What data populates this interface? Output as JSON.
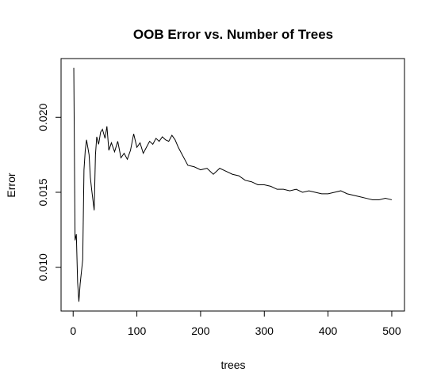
{
  "chart_data": {
    "type": "line",
    "title": "OOB Error vs. Number of Trees",
    "xlabel": "trees",
    "ylabel": "Error",
    "x": [
      1,
      2,
      3,
      5,
      7,
      9,
      11,
      13,
      15,
      17,
      19,
      21,
      23,
      25,
      27,
      29,
      31,
      33,
      35,
      37,
      40,
      43,
      46,
      50,
      53,
      56,
      60,
      65,
      70,
      75,
      80,
      85,
      90,
      95,
      100,
      105,
      110,
      115,
      120,
      125,
      130,
      135,
      140,
      145,
      150,
      155,
      160,
      165,
      170,
      175,
      180,
      190,
      200,
      210,
      220,
      230,
      240,
      250,
      260,
      270,
      280,
      290,
      300,
      310,
      320,
      330,
      340,
      350,
      360,
      370,
      380,
      390,
      400,
      410,
      420,
      430,
      440,
      450,
      460,
      470,
      480,
      490,
      500
    ],
    "series": [
      {
        "name": "OOB",
        "color": "#000000",
        "values": [
          0.0233,
          0.0175,
          0.0118,
          0.0122,
          0.009,
          0.0077,
          0.0089,
          0.0097,
          0.0105,
          0.0165,
          0.0178,
          0.0185,
          0.018,
          0.0175,
          0.016,
          0.0152,
          0.0145,
          0.0138,
          0.0175,
          0.0187,
          0.0182,
          0.019,
          0.0192,
          0.0186,
          0.0194,
          0.0178,
          0.0183,
          0.0177,
          0.0184,
          0.0173,
          0.0176,
          0.0172,
          0.0178,
          0.0189,
          0.018,
          0.0183,
          0.0176,
          0.018,
          0.0184,
          0.0182,
          0.0186,
          0.0184,
          0.0187,
          0.0185,
          0.0184,
          0.0188,
          0.0185,
          0.018,
          0.0176,
          0.0172,
          0.0168,
          0.0167,
          0.0165,
          0.0166,
          0.0162,
          0.0166,
          0.0164,
          0.0162,
          0.0161,
          0.0158,
          0.0157,
          0.0155,
          0.0155,
          0.0154,
          0.0152,
          0.0152,
          0.0151,
          0.0152,
          0.015,
          0.0151,
          0.015,
          0.0149,
          0.0149,
          0.015,
          0.0151,
          0.0149,
          0.0148,
          0.0147,
          0.0146,
          0.0145,
          0.0145,
          0.0146,
          0.0145
        ]
      }
    ],
    "xlim": [
      -18.96,
      519.96
    ],
    "xticks": [
      0,
      100,
      200,
      300,
      400,
      500
    ],
    "ylim": [
      0.00708,
      0.02392
    ],
    "yticks": [
      {
        "value": 0.01,
        "label": "0.010"
      },
      0.015,
      {
        "value": 0.02,
        "label": "0.020"
      }
    ]
  }
}
